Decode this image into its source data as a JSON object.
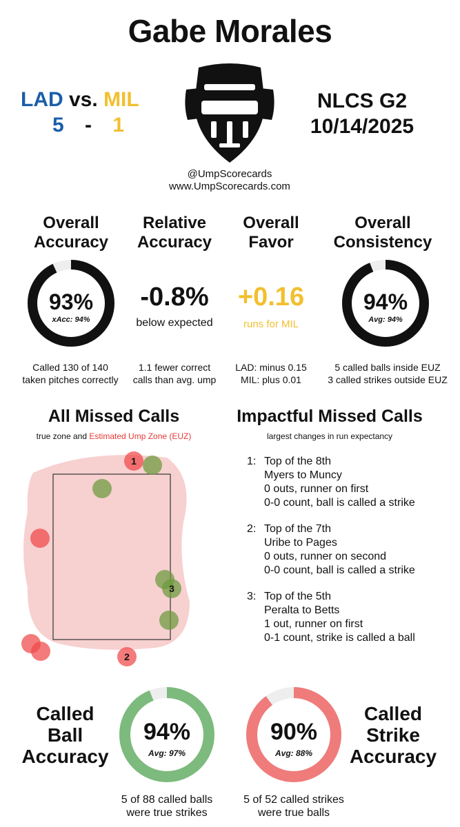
{
  "header": {
    "umpire_name": "Gabe Morales",
    "away_team": "LAD",
    "vs": "vs.",
    "home_team": "MIL",
    "away_score": "5",
    "score_dash": "-",
    "home_score": "1",
    "series": "NLCS  G2",
    "date": "10/14/2025",
    "handle": "@UmpScorecards",
    "website": "www.UmpScorecards.com",
    "mask_icon": "umpire-mask-icon"
  },
  "stats": {
    "accuracy": {
      "head_line1": "Overall",
      "head_line2": "Accuracy",
      "value": "93%",
      "sub": "xAcc: 94%",
      "fraction": 0.93,
      "note_line1": "Called 130 of 140",
      "note_line2": "taken pitches correctly"
    },
    "relative": {
      "head_line1": "Relative",
      "head_line2": "Accuracy",
      "value": "-0.8%",
      "sub": "below expected",
      "note_line1": "1.1 fewer correct",
      "note_line2": "calls than avg. ump"
    },
    "favor": {
      "head_line1": "Overall",
      "head_line2": "Favor",
      "value": "+0.16",
      "sub": "runs for MIL",
      "note_line1": "LAD: minus 0.15",
      "note_line2": "MIL: plus 0.01"
    },
    "consistency": {
      "head_line1": "Overall",
      "head_line2": "Consistency",
      "value": "94%",
      "sub": "Avg: 94%",
      "fraction": 0.94,
      "note_line1": "5 called balls inside EUZ",
      "note_line2": "3 called strikes outside EUZ"
    }
  },
  "missed_calls": {
    "title": "All Missed Calls",
    "legend_prefix": "true zone and",
    "legend_euz": "Estimated Ump Zone (EUZ)",
    "colors": {
      "ball_missed": "#6b9a3c",
      "strike_missed": "#f04848",
      "euz": "#f6c8c8"
    }
  },
  "impactful": {
    "title": "Impactful Missed Calls",
    "subtitle": "largest changes in run expectancy",
    "items": [
      {
        "num": "1:",
        "inning": "Top of the 8th",
        "matchup": "Myers to Muncy",
        "situation": "0 outs, runner on first",
        "call": "0-0 count, ball is called a strike"
      },
      {
        "num": "2:",
        "inning": "Top of the 7th",
        "matchup": "Uribe to Pages",
        "situation": "0 outs, runner on second",
        "call": "0-0 count, ball is called a strike"
      },
      {
        "num": "3:",
        "inning": "Top of the 5th",
        "matchup": "Peralta to Betts",
        "situation": "1 out, runner on first",
        "call": "0-1 count, strike is called a ball"
      }
    ]
  },
  "bottom": {
    "ball": {
      "head_line1": "Called",
      "head_line2": "Ball",
      "head_line3": "Accuracy",
      "value": "94%",
      "sub": "Avg: 97%",
      "fraction": 0.94,
      "color": "#7dba7d",
      "note_line1": "5 of 88 called balls",
      "note_line2": "were true strikes"
    },
    "strike": {
      "head_line1": "Called",
      "head_line2": "Strike",
      "head_line3": "Accuracy",
      "value": "90%",
      "sub": "Avg: 88%",
      "fraction": 0.9,
      "color": "#ef7b7b",
      "note_line1": "5 of 52 called strikes",
      "note_line2": "were true balls"
    }
  }
}
